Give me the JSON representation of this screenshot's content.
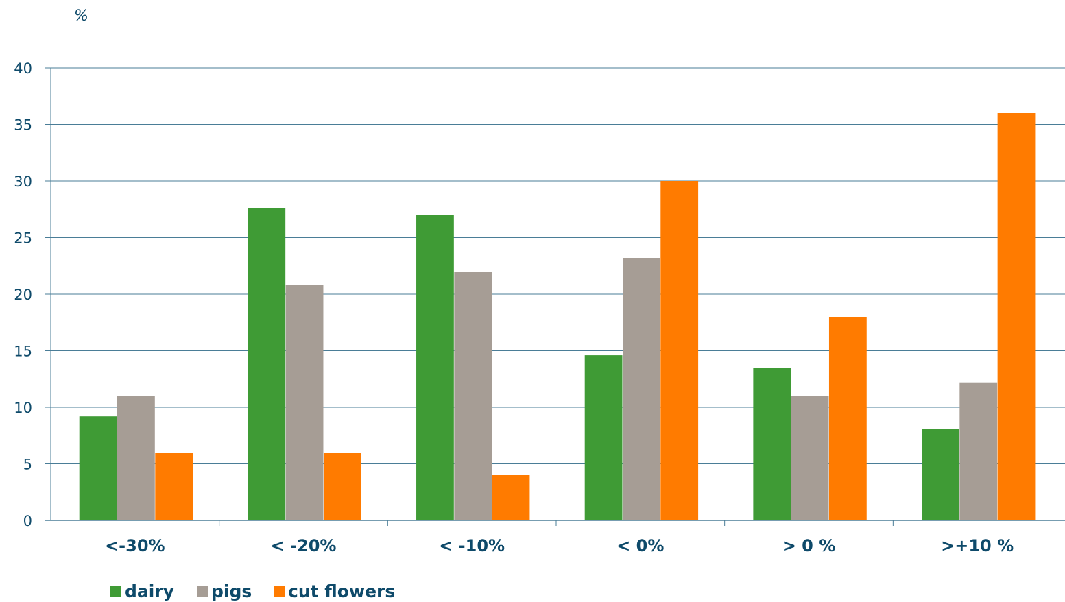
{
  "chart_data": {
    "type": "bar",
    "ylabel": "%",
    "ylim": [
      0,
      40
    ],
    "yticks": [
      0,
      5,
      10,
      15,
      20,
      25,
      30,
      35,
      40
    ],
    "grid": true,
    "legend_position": "bottom-left",
    "categories": [
      "<-30%",
      "< -20%",
      "< -10%",
      "< 0%",
      "> 0 %",
      ">+10 %"
    ],
    "series": [
      {
        "name": "dairy",
        "color": "#3f9b35",
        "values": [
          9.2,
          27.6,
          27.0,
          14.6,
          13.5,
          8.1
        ]
      },
      {
        "name": "pigs",
        "color": "#a69d95",
        "values": [
          11.0,
          20.8,
          22.0,
          23.2,
          11.0,
          12.2
        ]
      },
      {
        "name": "cut flowers",
        "color": "#ff7b00",
        "values": [
          6.0,
          6.0,
          4.0,
          30.0,
          18.0,
          36.0
        ]
      }
    ],
    "colors": {
      "text": "#0e4a6a",
      "grid": "#4a7d97"
    }
  }
}
